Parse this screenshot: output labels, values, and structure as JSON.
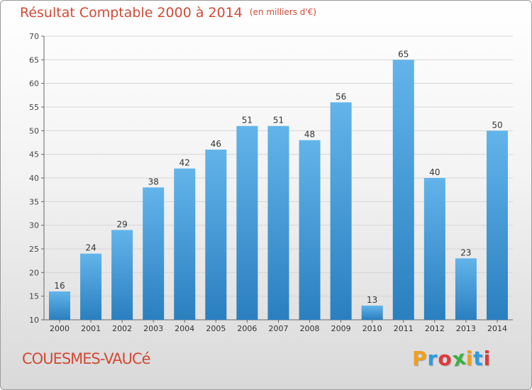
{
  "title": "Résultat Comptable 2000 à 2014",
  "subtitle": "(en milliers d'€)",
  "commune": "COUESMES-VAUCé",
  "logo": {
    "letters": [
      "P",
      "r",
      "o",
      "x",
      "i",
      "t",
      "i"
    ],
    "colors": [
      "#f0a020",
      "#2e9be0",
      "#e03a3a",
      "#3cb043",
      "#f0a020",
      "#2e9be0",
      "#e03a3a"
    ]
  },
  "colors": {
    "title": "#d04a35",
    "bar_top": "#62b4ea",
    "bar_bottom": "#2a7fbf",
    "grid": "#d6d6d6"
  },
  "chart_data": {
    "type": "bar",
    "categories": [
      "2000",
      "2001",
      "2002",
      "2003",
      "2004",
      "2005",
      "2006",
      "2007",
      "2008",
      "2009",
      "2010",
      "2011",
      "2012",
      "2013",
      "2014"
    ],
    "values": [
      16,
      24,
      29,
      38,
      42,
      46,
      51,
      51,
      48,
      56,
      13,
      65,
      40,
      23,
      50
    ],
    "ylim": [
      10,
      70
    ],
    "yticks": [
      "10",
      "15",
      "20",
      "25",
      "30",
      "35",
      "40",
      "45",
      "50",
      "55",
      "60",
      "65",
      "70"
    ],
    "grid": true,
    "data_labels": true
  }
}
